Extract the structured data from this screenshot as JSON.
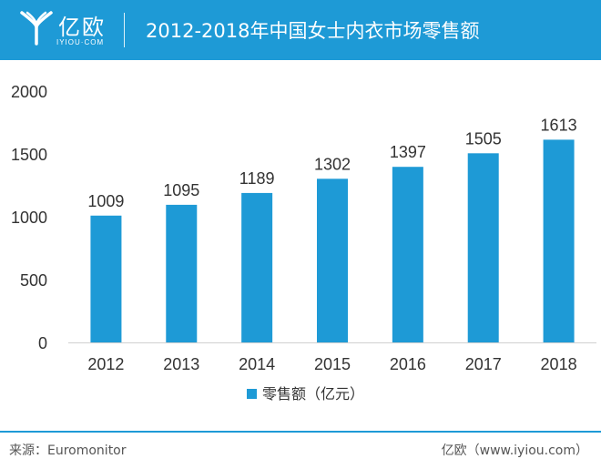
{
  "header": {
    "logo_cn": "亿欧",
    "logo_en": "IYIOU·COM",
    "title": "2012-2018年中国女士内衣市场零售额"
  },
  "footer": {
    "source": "来源：Euromonitor",
    "site": "亿欧（www.iyiou.com）"
  },
  "colors": {
    "brand": "#1e9ad6",
    "bar": "#1e9ad6",
    "text": "#333333"
  },
  "chart_data": {
    "type": "bar",
    "categories": [
      "2012",
      "2013",
      "2014",
      "2015",
      "2016",
      "2017",
      "2018"
    ],
    "series": [
      {
        "name": "零售额（亿元）",
        "values": [
          1009,
          1095,
          1189,
          1302,
          1397,
          1505,
          1613
        ]
      }
    ],
    "ylim": [
      0,
      2000
    ],
    "yticks": [
      "0",
      "500",
      "1000",
      "1500",
      "2000"
    ],
    "data_labels": [
      "1009",
      "1095",
      "1189",
      "1302",
      "1397",
      "1505",
      "1613"
    ],
    "legend": "bottom",
    "grid": false
  }
}
